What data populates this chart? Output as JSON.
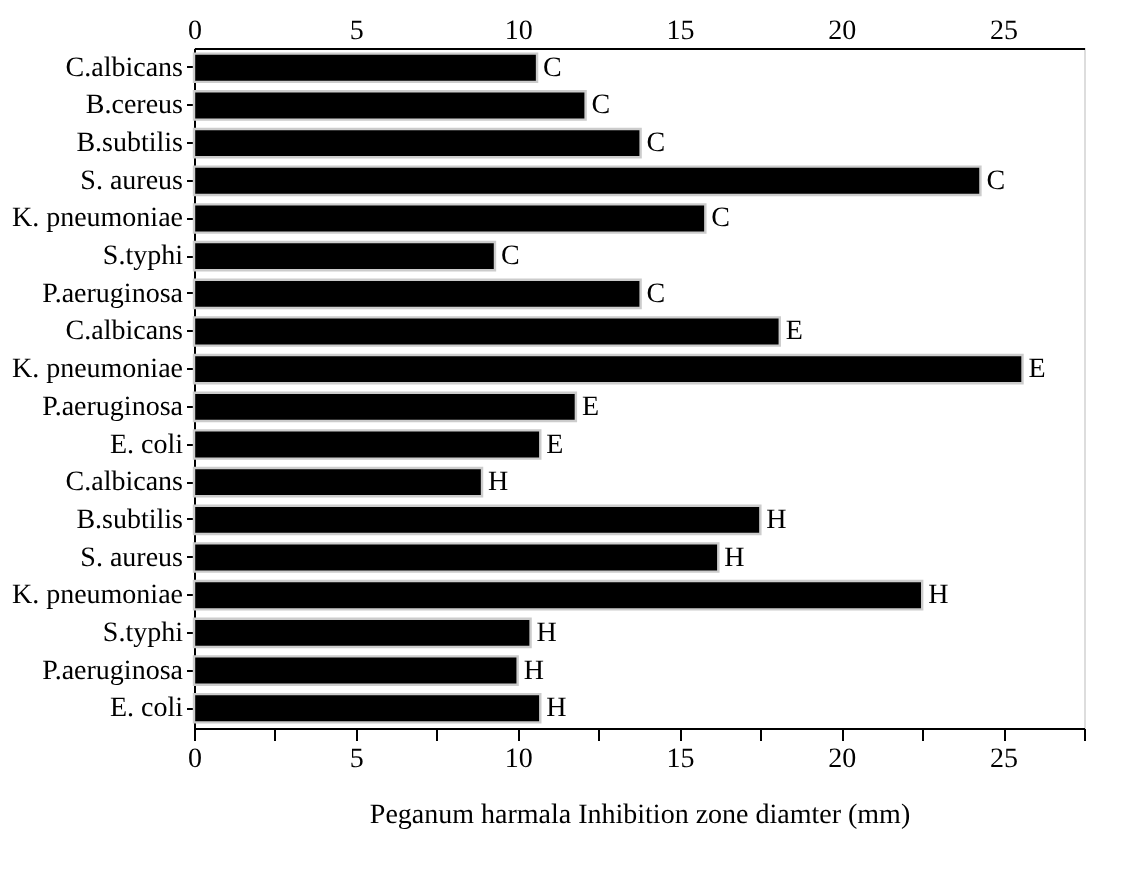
{
  "chart_data": {
    "type": "bar",
    "orientation": "horizontal",
    "xlabel": "Peganum harmala Inhibition zone diamter (mm)",
    "categories": [
      "C.albicans",
      "B.cereus",
      "B.subtilis",
      "S. aureus",
      "K. pneumoniae",
      "S.typhi",
      "P.aeruginosa",
      "C.albicans",
      "K. pneumoniae",
      "P.aeruginosa",
      "E. coli",
      "C.albicans",
      "B.subtilis",
      "S. aureus",
      "K. pneumoniae",
      "S.typhi",
      "P.aeruginosa",
      "E. coli"
    ],
    "values": [
      10.6,
      12.1,
      13.8,
      24.3,
      15.8,
      9.3,
      13.8,
      18.1,
      25.6,
      11.8,
      10.7,
      8.9,
      17.5,
      16.2,
      22.5,
      10.4,
      10.0,
      10.7
    ],
    "value_labels": [
      "C",
      "C",
      "C",
      "C",
      "C",
      "C",
      "C",
      "E",
      "E",
      "E",
      "E",
      "H",
      "H",
      "H",
      "H",
      "H",
      "H",
      "H"
    ],
    "color": "#000000",
    "xlim": [
      0,
      27.5
    ],
    "xticks": [
      0,
      {
        "value": 2.5,
        "label": null
      },
      5,
      {
        "value": 7.5,
        "label": null
      },
      10,
      {
        "value": 12.5,
        "label": null
      },
      15,
      {
        "value": 17.5,
        "label": null
      },
      20,
      {
        "value": 22.5,
        "label": null
      },
      25,
      {
        "value": 27.5,
        "label": null
      }
    ],
    "x2lim": [
      0,
      27.5
    ],
    "x2ticks": [
      0,
      5,
      10,
      15,
      20,
      25
    ],
    "grid": false
  }
}
